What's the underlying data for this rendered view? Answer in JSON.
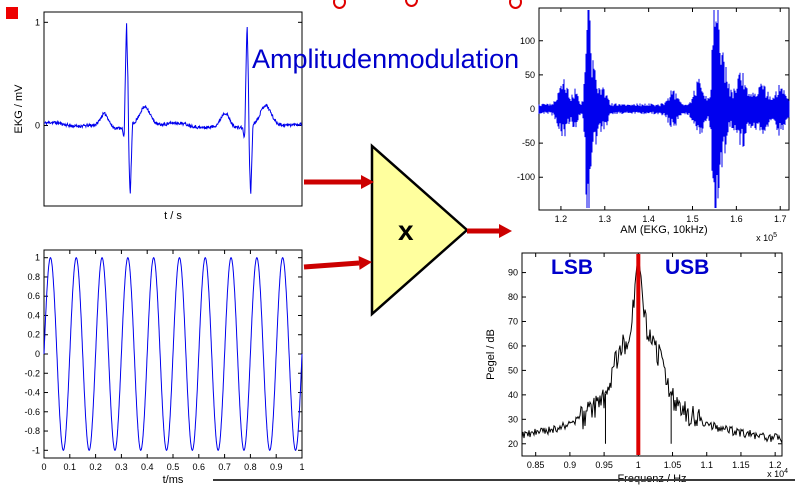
{
  "slide": {
    "title": "Amplitudenmodulation",
    "title_color": "#0000CC",
    "bullet_color": "#EE0000",
    "divider_color": "#3A3A3A",
    "fragment_color": "#E00000"
  },
  "multiplier": {
    "label": "x",
    "fill": "#FFFF9E",
    "stroke": "#000000"
  },
  "arrows": {
    "color": "#CC0000"
  },
  "sidebands": {
    "lsb": "LSB",
    "usb": "USB",
    "color": "#0000CC"
  },
  "chart_data": [
    {
      "id": "ekg",
      "type": "line",
      "xlabel": "t / s",
      "ylabel": "EKG / mV",
      "xlim": [
        0,
        1
      ],
      "ylim": [
        -0.78,
        1.1
      ],
      "xticks": [],
      "yticks": [
        0,
        1
      ],
      "line_color": "#0000EE",
      "beats": [
        0.32,
        0.787
      ],
      "r_amp": 1.03,
      "s_amp": -0.7,
      "p_amp": 0.13,
      "t_amp": 0.17,
      "wander": 0.03
    },
    {
      "id": "carrier",
      "type": "line",
      "xlabel": "t/ms",
      "ylabel": "",
      "xlim": [
        0,
        1
      ],
      "ylim": [
        -1.08,
        1.08
      ],
      "xticks": [
        0,
        0.1,
        0.2,
        0.3,
        0.4,
        0.5,
        0.6,
        0.7,
        0.8,
        0.9,
        1
      ],
      "yticks": [
        1,
        0.8,
        0.6,
        0.4,
        0.2,
        0,
        -0.2,
        -0.4,
        -0.6,
        -0.8,
        -1
      ],
      "cycles": 10,
      "amplitude": 1,
      "line_color": "#0000EE"
    },
    {
      "id": "am",
      "type": "line",
      "xlabel": "AM (EKG, 10kHz)",
      "ylabel": "",
      "scale_note": "x 10^5",
      "xlim": [
        1.15,
        1.72
      ],
      "ylim": [
        -148,
        148
      ],
      "xticks": [
        1.2,
        1.3,
        1.4,
        1.5,
        1.6,
        1.7
      ],
      "yticks": [
        100,
        50,
        0,
        -50,
        -100
      ],
      "line_color": "#0000EE",
      "base_amplitude": 6,
      "envelope_bumps": [
        [
          1.205,
          0.01,
          28
        ],
        [
          1.232,
          0.006,
          16
        ],
        [
          1.262,
          0.005,
          138
        ],
        [
          1.276,
          0.008,
          40
        ],
        [
          1.298,
          0.007,
          20
        ],
        [
          1.455,
          0.01,
          16
        ],
        [
          1.515,
          0.01,
          30
        ],
        [
          1.552,
          0.006,
          132
        ],
        [
          1.568,
          0.01,
          55
        ],
        [
          1.612,
          0.014,
          38
        ],
        [
          1.658,
          0.012,
          26
        ],
        [
          1.7,
          0.01,
          24
        ]
      ]
    },
    {
      "id": "spectrum",
      "type": "line",
      "xlabel": "Frequenz / Hz",
      "ylabel": "Pegel / dB",
      "scale_note": "x 10^4",
      "xlim": [
        0.83,
        1.21
      ],
      "ylim": [
        15,
        98
      ],
      "xticks": [
        0.85,
        0.9,
        0.95,
        1,
        1.05,
        1.1,
        1.15,
        1.2
      ],
      "yticks": [
        20,
        30,
        40,
        50,
        60,
        70,
        80,
        90
      ],
      "line_color": "#000000",
      "noise_db": 3,
      "carrier_line": {
        "x": 1,
        "color": "#DD0000",
        "width": 4
      },
      "notches": [
        0.952,
        1.048
      ],
      "profile": [
        [
          0,
          95
        ],
        [
          0.003,
          90
        ],
        [
          0.006,
          80
        ],
        [
          0.01,
          70
        ],
        [
          0.016,
          63
        ],
        [
          0.024,
          60
        ],
        [
          0.032,
          55
        ],
        [
          0.04,
          46
        ],
        [
          0.05,
          39
        ],
        [
          0.065,
          34
        ],
        [
          0.085,
          30
        ],
        [
          0.11,
          27
        ],
        [
          0.14,
          25
        ],
        [
          0.18,
          23
        ],
        [
          0.21,
          22
        ]
      ]
    }
  ]
}
